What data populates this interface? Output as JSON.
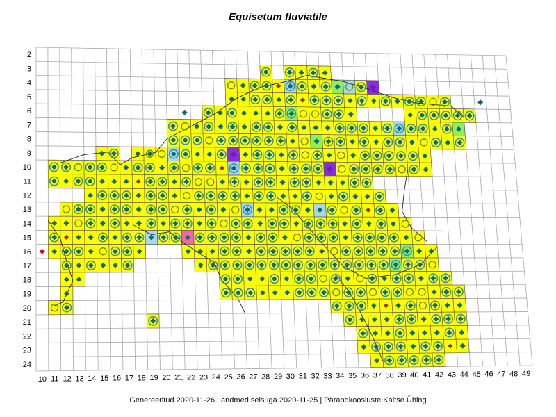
{
  "title": "Equisetum fluviatile",
  "footer": "Genereeritud 2020-11-26  |  andmed seisuga 2020-11-25  |  Pärandkoosluste Kaitse Ühing",
  "grid": {
    "row_labels": [
      "2",
      "3",
      "4",
      "5",
      "6",
      "7",
      "8",
      "9",
      "10",
      "11",
      "12",
      "13",
      "14",
      "15",
      "16",
      "17",
      "18",
      "19",
      "20",
      "21",
      "22",
      "23",
      "24"
    ],
    "col_labels": [
      "10",
      "11",
      "12",
      "13",
      "14",
      "15",
      "16",
      "17",
      "18",
      "19",
      "20",
      "21",
      "22",
      "23",
      "24",
      "25",
      "26",
      "27",
      "28",
      "29",
      "30",
      "31",
      "32",
      "33",
      "34",
      "35",
      "36",
      "37",
      "38",
      "39",
      "40",
      "41",
      "42",
      "43",
      "44",
      "45",
      "46",
      "47",
      "48",
      "49"
    ]
  },
  "colors": {
    "occupied_fill": "#ffff00",
    "grid_line": "#aaaaaa",
    "occupied_border": "#555555",
    "diamond": "#0e6a7a",
    "circle_marker": "#3a8fa0",
    "red_diamond": "#e0001a",
    "brown_diamond": "#8b3a00",
    "light_blue_cell": "#a8d8e8",
    "green_cell": "#8ef05a",
    "purple_cell": "#8a2be2",
    "pink_cell": "#f06aa0",
    "coast": "#222222"
  },
  "occupied_rows": [
    {
      "row": 3,
      "spans": [
        [
          29,
          29
        ],
        [
          31,
          34
        ]
      ]
    },
    {
      "row": 4,
      "spans": [
        [
          26,
          38
        ]
      ]
    },
    {
      "row": 5,
      "spans": [
        [
          26,
          44
        ]
      ]
    },
    {
      "row": 6,
      "spans": [
        [
          24,
          36
        ],
        [
          41,
          46
        ]
      ]
    },
    {
      "row": 7,
      "spans": [
        [
          21,
          45
        ]
      ]
    },
    {
      "row": 8,
      "spans": [
        [
          21,
          45
        ]
      ]
    },
    {
      "row": 9,
      "spans": [
        [
          15,
          16
        ],
        [
          18,
          42
        ]
      ]
    },
    {
      "row": 10,
      "spans": [
        [
          11,
          42
        ]
      ]
    },
    {
      "row": 11,
      "spans": [
        [
          11,
          37
        ]
      ]
    },
    {
      "row": 12,
      "spans": [
        [
          14,
          38
        ]
      ]
    },
    {
      "row": 13,
      "spans": [
        [
          12,
          39
        ]
      ]
    },
    {
      "row": 14,
      "spans": [
        [
          11,
          40
        ]
      ]
    },
    {
      "row": 15,
      "spans": [
        [
          11,
          41
        ]
      ]
    },
    {
      "row": 16,
      "spans": [
        [
          11,
          18
        ],
        [
          22,
          42
        ]
      ]
    },
    {
      "row": 17,
      "spans": [
        [
          12,
          17
        ],
        [
          23,
          42
        ]
      ]
    },
    {
      "row": 18,
      "spans": [
        [
          12,
          13
        ],
        [
          25,
          43
        ]
      ]
    },
    {
      "row": 19,
      "spans": [
        [
          12,
          12
        ],
        [
          25,
          44
        ]
      ]
    },
    {
      "row": 20,
      "spans": [
        [
          11,
          12
        ],
        [
          34,
          44
        ]
      ]
    },
    {
      "row": 21,
      "spans": [
        [
          19,
          19
        ],
        [
          35,
          44
        ]
      ]
    },
    {
      "row": 22,
      "spans": [
        [
          36,
          44
        ]
      ]
    },
    {
      "row": 23,
      "spans": [
        [
          36,
          44
        ]
      ]
    },
    {
      "row": 24,
      "spans": [
        [
          37,
          42
        ]
      ]
    }
  ],
  "special_cells": [
    {
      "row": 4,
      "col": 38,
      "color": "purple"
    },
    {
      "row": 9,
      "col": 26,
      "color": "purple"
    },
    {
      "row": 10,
      "col": 34,
      "color": "purple"
    },
    {
      "row": 15,
      "col": 22,
      "color": "pink"
    },
    {
      "row": 4,
      "col": 35,
      "color": "green"
    },
    {
      "row": 6,
      "col": 31,
      "color": "green"
    },
    {
      "row": 8,
      "col": 33,
      "color": "green"
    },
    {
      "row": 16,
      "col": 40,
      "color": "green"
    },
    {
      "row": 17,
      "col": 39,
      "color": "green"
    },
    {
      "row": 7,
      "col": 45,
      "color": "green"
    },
    {
      "row": 4,
      "col": 31,
      "color": "lightblue"
    },
    {
      "row": 4,
      "col": 36,
      "color": "lightblue"
    },
    {
      "row": 9,
      "col": 21,
      "color": "lightblue"
    },
    {
      "row": 10,
      "col": 26,
      "color": "lightblue"
    },
    {
      "row": 13,
      "col": 27,
      "color": "lightblue"
    },
    {
      "row": 15,
      "col": 19,
      "color": "lightblue"
    },
    {
      "row": 7,
      "col": 40,
      "color": "lightblue"
    },
    {
      "row": 13,
      "col": 33,
      "color": "lightblue"
    }
  ],
  "outliers": [
    {
      "row": 16,
      "col": 10,
      "symbol": "red-diamond"
    },
    {
      "row": 6,
      "col": 22,
      "symbol": "diamond"
    },
    {
      "row": 9,
      "col": 19,
      "symbol": "diamond"
    },
    {
      "row": 5,
      "col": 47,
      "symbol": "diamond"
    }
  ]
}
